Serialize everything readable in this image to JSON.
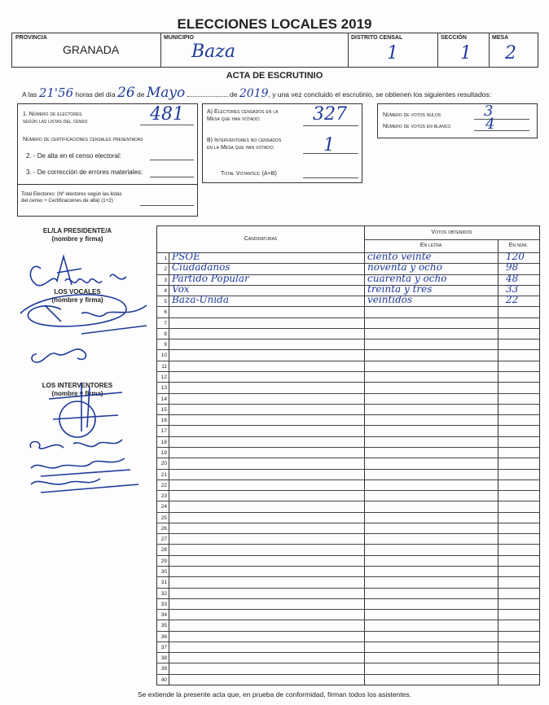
{
  "title": "ELECCIONES LOCALES 2019",
  "header": {
    "provincia_label": "PROVINCIA",
    "provincia": "GRANADA",
    "municipio_label": "MUNICIPIO",
    "municipio": "Baza",
    "distrito_label": "DISTRITO CENSAL",
    "distrito": "1",
    "seccion_label": "SECCIÓN",
    "seccion": "1",
    "mesa_label": "MESA",
    "mesa": "2"
  },
  "acta": {
    "title": "ACTA DE ESCRUTINIO",
    "t1": "A las",
    "hora": "21'56",
    "t2": "horas del día",
    "dia": "26",
    "t3": "de",
    "mes": "Mayo",
    "t4": "de",
    "anio": "2019",
    "t5": ", y una vez concluido el escrutinio, se obtienen los siguientes resultados:"
  },
  "electores": {
    "n1_label_a": "1. Número de electores",
    "n1_label_b": "según las listas del censo",
    "n1": "481",
    "cert_label": "Número de certificaciones censales presentadas",
    "alta_label": "2. - De alta en el censo electoral:",
    "correccion_label": "3. - De corrección de errores materiales:",
    "total_label_a": "Total Electores: (Nº electores según las listas",
    "total_label_b": "del censo + Certificaciones de alta) (1+2)"
  },
  "votantes": {
    "a_label_a": "A) Electores censados en la",
    "a_label_b": "Mesa que han votado:",
    "a": "327",
    "b_label_a": "B) Interventores no censados",
    "b_label_b": "en la Mesa que han votado:",
    "b": "1",
    "total_label": "Total Votantes: (A+B)"
  },
  "votos": {
    "nulos_label": "Número de votos nulos",
    "nulos": "3",
    "blanco_label": "Número de votos en blanco",
    "blanco": "4"
  },
  "firmas": {
    "presidente": "EL/LA PRESIDENTE/A",
    "presidente_sub": "(nombre y firma)",
    "vocales": "LOS VOCALES",
    "vocales_sub": "(nombre y firma)",
    "interventores": "LOS INTERVENTORES",
    "interventores_sub": "(nombre y firma)"
  },
  "table": {
    "candidaturas_header": "Candidaturas",
    "votos_header": "Votos obtenidos",
    "letra_header": "En letra",
    "num_header": "En núm.",
    "rows": [
      {
        "n": "1",
        "cand": "PSOE",
        "letra": "ciento veinte",
        "num": "120"
      },
      {
        "n": "2",
        "cand": "Ciudadanos",
        "letra": "noventa y ocho",
        "num": "98"
      },
      {
        "n": "3",
        "cand": "Partido Popular",
        "letra": "cuarenta y ocho",
        "num": "48"
      },
      {
        "n": "4",
        "cand": "Vox",
        "letra": "treinta y tres",
        "num": "33"
      },
      {
        "n": "5",
        "cand": "Baza-Unida",
        "letra": "veintidós",
        "num": "22"
      }
    ],
    "row_count": 40
  },
  "footer": "Se extiende la presente acta que, en prueba de conformidad, firman todos los asistentes.",
  "colors": {
    "ink": "#1e3a9a",
    "border": "#333333"
  }
}
